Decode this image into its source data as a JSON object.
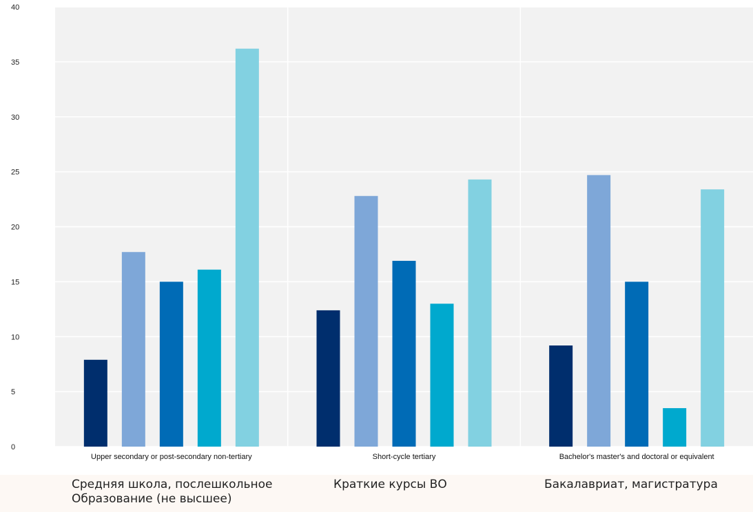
{
  "chart_data": {
    "type": "bar",
    "categories": [
      "Upper secondary or post-secondary non-tertiary",
      "Short-cycle tertiary",
      "Bachelor's master's and doctoral or equivalent"
    ],
    "series": [
      {
        "values": [
          7.9,
          12.4,
          9.2
        ],
        "color": "#002e6d"
      },
      {
        "values": [
          17.7,
          22.8,
          24.7
        ],
        "color": "#7ea7d8"
      },
      {
        "values": [
          15.0,
          16.9,
          15.0
        ],
        "color": "#006bb6"
      },
      {
        "values": [
          16.1,
          13.0,
          3.5
        ],
        "color": "#00a9ce"
      },
      {
        "values": [
          36.2,
          24.3,
          23.4
        ],
        "color": "#82d1e1"
      }
    ],
    "ylim": [
      0,
      40
    ],
    "yticks": [
      0,
      5,
      10,
      15,
      20,
      25,
      30,
      35,
      40
    ],
    "grid": true,
    "background": "#f2f2f2",
    "gridColor": "#ffffff"
  },
  "translations": [
    "Средняя школа, послешкольное\nОбразование (не высшее)",
    "Краткие курсы ВО",
    "Бакалавриат, магистратура"
  ]
}
